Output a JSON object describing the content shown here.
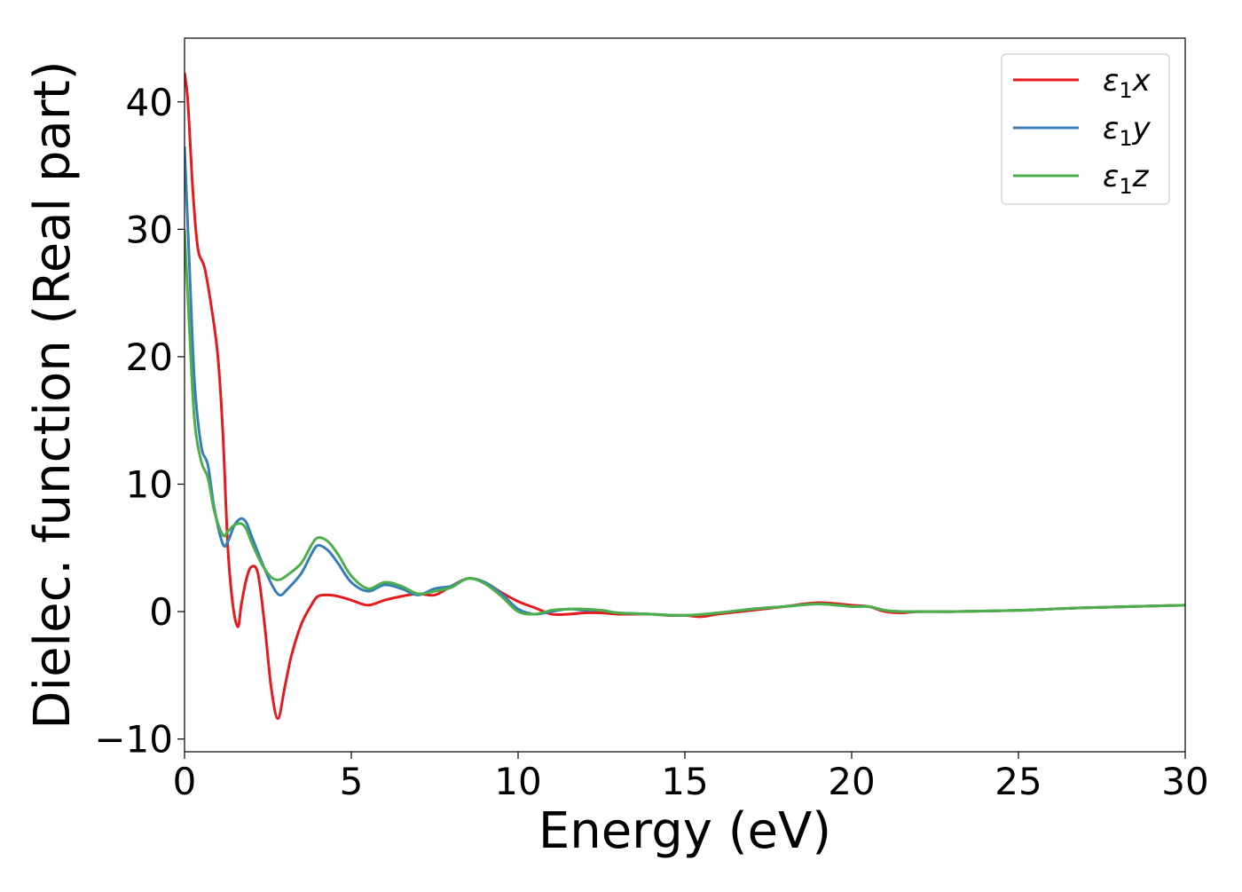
{
  "chart_data": {
    "type": "line",
    "xlabel": "Energy (eV)",
    "ylabel": "Dielec. function (Real part)",
    "xlim": [
      0,
      30
    ],
    "ylim": [
      -11,
      45
    ],
    "xticks": [
      0,
      5,
      10,
      15,
      20,
      25,
      30
    ],
    "yticks": [
      -10,
      0,
      10,
      20,
      30,
      40
    ],
    "xtick_labels": [
      "0",
      "5",
      "10",
      "15",
      "20",
      "25",
      "30"
    ],
    "ytick_labels": [
      "−10",
      "0",
      "10",
      "20",
      "30",
      "40"
    ],
    "grid": false,
    "legend_position": "top-right",
    "series": [
      {
        "name": "ε₁x",
        "label_main": "ε",
        "label_sub": "1",
        "label_var": "x",
        "color": "#e41a1c",
        "x": [
          0,
          0.1,
          0.25,
          0.4,
          0.6,
          0.8,
          1.0,
          1.15,
          1.3,
          1.45,
          1.6,
          1.7,
          1.85,
          2.0,
          2.2,
          2.4,
          2.6,
          2.8,
          3.0,
          3.2,
          3.5,
          3.8,
          4.0,
          4.3,
          4.6,
          5.0,
          5.5,
          6.0,
          6.5,
          7.0,
          7.5,
          8.0,
          8.5,
          9.0,
          9.5,
          10.0,
          10.5,
          11.0,
          11.5,
          12.0,
          12.5,
          13.0,
          13.5,
          14.0,
          14.5,
          15.0,
          15.5,
          16.0,
          17.0,
          18.0,
          19.0,
          20.0,
          20.5,
          21.0,
          21.5,
          22.0,
          23.0,
          25.0,
          27.0,
          30.0
        ],
        "y": [
          42.3,
          40.0,
          33.0,
          28.5,
          27.0,
          24.0,
          20.0,
          14.0,
          5.0,
          0.5,
          -1.2,
          0.5,
          2.5,
          3.5,
          3.0,
          -1.0,
          -6.0,
          -8.4,
          -6.0,
          -3.5,
          -1.0,
          0.5,
          1.2,
          1.3,
          1.2,
          0.9,
          0.5,
          0.9,
          1.2,
          1.4,
          1.3,
          2.0,
          2.6,
          2.3,
          1.5,
          0.8,
          0.3,
          -0.2,
          -0.2,
          -0.1,
          -0.1,
          -0.2,
          -0.2,
          -0.2,
          -0.3,
          -0.3,
          -0.4,
          -0.2,
          0.1,
          0.4,
          0.7,
          0.5,
          0.4,
          0.0,
          -0.1,
          0.0,
          0.0,
          0.1,
          0.3,
          0.5
        ]
      },
      {
        "name": "ε₁y",
        "label_main": "ε",
        "label_sub": "1",
        "label_var": "y",
        "color": "#377eb8",
        "x": [
          0,
          0.15,
          0.3,
          0.5,
          0.7,
          0.9,
          1.15,
          1.3,
          1.5,
          1.7,
          1.85,
          2.0,
          2.3,
          2.6,
          2.85,
          3.1,
          3.5,
          3.8,
          4.0,
          4.3,
          4.6,
          5.0,
          5.5,
          6.0,
          6.5,
          7.0,
          7.5,
          8.0,
          8.5,
          9.0,
          9.5,
          10.0,
          10.5,
          11.0,
          11.5,
          12.0,
          12.5,
          13.0,
          14.0,
          15.0,
          16.0,
          17.0,
          18.0,
          19.0,
          20.0,
          20.5,
          21.0,
          21.5,
          22.0,
          23.0,
          25.0,
          27.0,
          30.0
        ],
        "y": [
          36.5,
          27.0,
          18.0,
          13.0,
          11.5,
          8.0,
          5.3,
          5.5,
          6.8,
          7.3,
          7.0,
          6.0,
          4.0,
          2.2,
          1.3,
          1.8,
          3.0,
          4.5,
          5.2,
          4.8,
          3.8,
          2.3,
          1.6,
          2.1,
          1.8,
          1.3,
          1.8,
          2.0,
          2.6,
          2.3,
          1.4,
          0.2,
          -0.2,
          0.0,
          0.2,
          0.1,
          0.1,
          -0.1,
          -0.2,
          -0.3,
          -0.1,
          0.2,
          0.4,
          0.6,
          0.4,
          0.4,
          0.1,
          0.0,
          0.0,
          0.0,
          0.1,
          0.3,
          0.5
        ]
      },
      {
        "name": "ε₁z",
        "label_main": "ε",
        "label_sub": "1",
        "label_var": "z",
        "color": "#4daf4a",
        "x": [
          0,
          0.15,
          0.3,
          0.5,
          0.7,
          0.9,
          1.15,
          1.3,
          1.5,
          1.7,
          1.85,
          2.0,
          2.3,
          2.6,
          2.85,
          3.1,
          3.5,
          3.8,
          4.0,
          4.3,
          4.6,
          5.0,
          5.5,
          6.0,
          6.5,
          7.0,
          7.5,
          8.0,
          8.5,
          9.0,
          9.5,
          10.0,
          10.5,
          11.0,
          11.5,
          12.0,
          12.5,
          13.0,
          14.0,
          15.0,
          16.0,
          17.0,
          18.0,
          19.0,
          20.0,
          20.5,
          21.0,
          21.5,
          22.0,
          23.0,
          25.0,
          27.0,
          30.0
        ],
        "y": [
          30.0,
          22.0,
          15.0,
          11.8,
          10.5,
          7.8,
          6.0,
          6.3,
          6.8,
          6.9,
          6.5,
          5.5,
          3.8,
          2.7,
          2.5,
          2.9,
          3.8,
          5.2,
          5.8,
          5.5,
          4.5,
          2.8,
          1.8,
          2.3,
          2.0,
          1.4,
          1.6,
          1.9,
          2.6,
          2.2,
          1.2,
          0.0,
          -0.2,
          0.1,
          0.2,
          0.2,
          0.1,
          -0.1,
          -0.2,
          -0.3,
          -0.1,
          0.2,
          0.4,
          0.6,
          0.4,
          0.4,
          0.1,
          0.0,
          0.0,
          0.0,
          0.1,
          0.3,
          0.5
        ]
      }
    ]
  }
}
